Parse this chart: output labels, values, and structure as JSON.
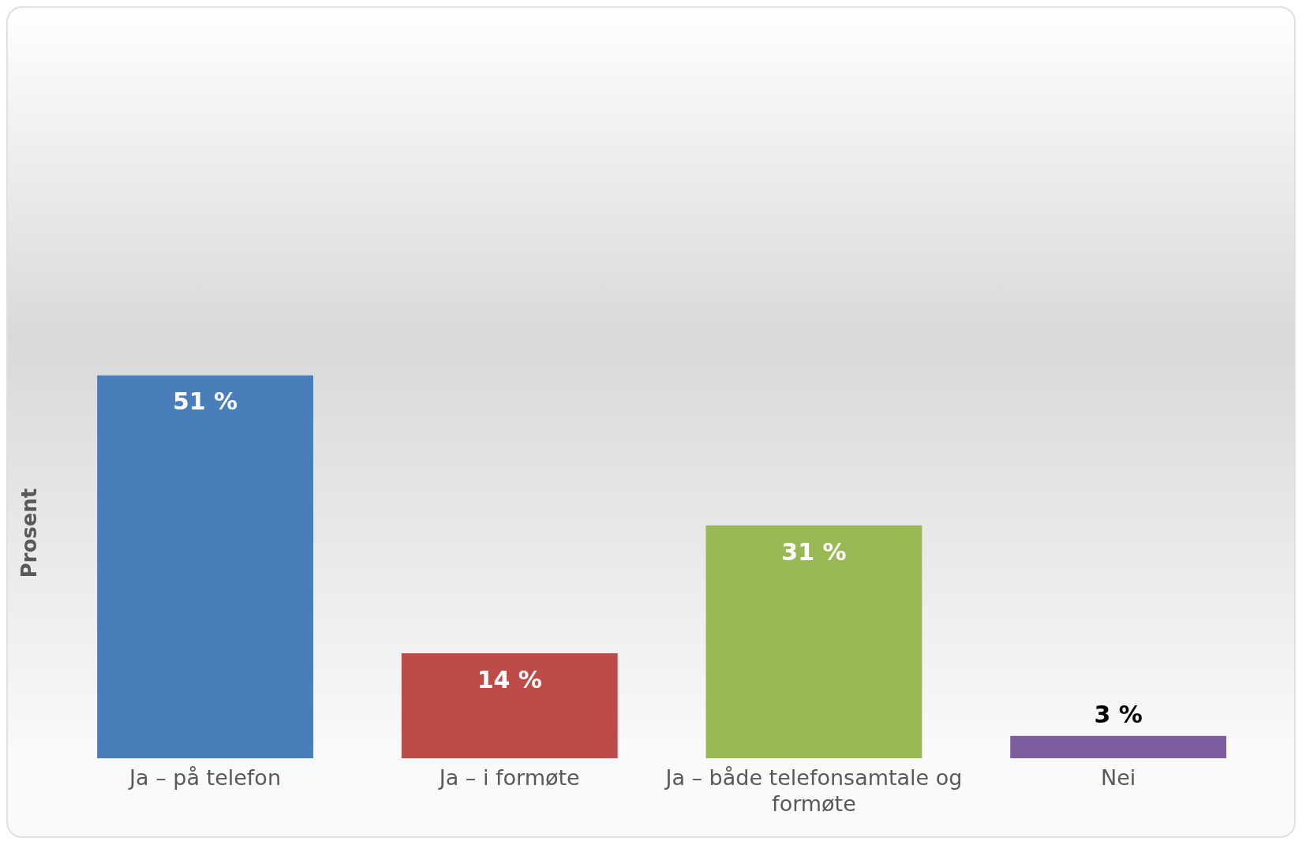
{
  "chart_data": {
    "type": "bar",
    "ylabel": "Prosent",
    "categories": [
      "Ja – på telefon",
      "Ja – i formøte",
      "Ja – både telefonsamtale og formøte",
      "Nei"
    ],
    "values": [
      51,
      14,
      31,
      3
    ],
    "colors": [
      "#4a7ebb",
      "#be4b48",
      "#98b954",
      "#7d5fa0"
    ],
    "value_labels": [
      "51 %",
      "14 %",
      "31 %",
      "3 %"
    ],
    "grid": false,
    "legend": false,
    "tick_labels": "x"
  }
}
